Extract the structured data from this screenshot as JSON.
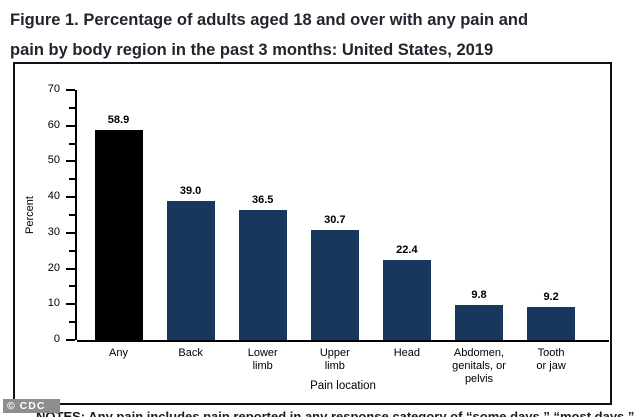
{
  "title": {
    "line1": "Figure 1. Percentage of adults aged 18 and over with any pain and",
    "line2": "pain by body region in the past 3 months: United States, 2019"
  },
  "chart_data": {
    "type": "bar",
    "title": "Percentage of adults aged 18 and over with any pain and pain by body region in the past 3 months: United States, 2019",
    "categories": [
      "Any",
      "Back",
      "Lower\nlimb",
      "Upper\nlimb",
      "Head",
      "Abdomen,\ngenitals, or\npelvis",
      "Tooth\nor jaw"
    ],
    "values": [
      58.9,
      39.0,
      36.5,
      30.7,
      22.4,
      9.8,
      9.2
    ],
    "value_labels": [
      "58.9",
      "39.0",
      "36.5",
      "30.7",
      "22.4",
      "9.8",
      "9.2"
    ],
    "bar_colors": [
      "#000000",
      "#17375d",
      "#17375d",
      "#17375d",
      "#17375d",
      "#17375d",
      "#17375d"
    ],
    "xlabel": "Pain location",
    "ylabel": "Percent",
    "ylim": [
      0,
      70
    ],
    "ytick_step": 10,
    "yminor_step": 5,
    "grid": false,
    "legend": "none"
  },
  "watermark": {
    "label": "© CDC"
  },
  "footer": {
    "note_clipped": "NOTES: Any pain includes pain reported in any response category of “some days,” “most days,” or “every day.”"
  }
}
